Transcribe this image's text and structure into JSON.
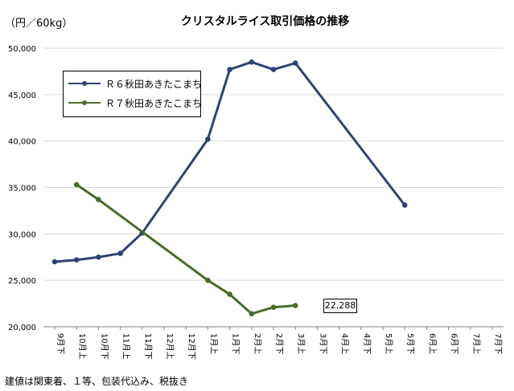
{
  "unit_label": "（円／60kg）",
  "footnote": "建値は関東着、１等、包装代込み、税抜き",
  "chart_data": {
    "type": "line",
    "title": "クリスタルライス取引価格の推移",
    "xlabel": "",
    "ylabel": "",
    "categories": [
      "9月下",
      "10月上",
      "10月下",
      "11月上",
      "11月下",
      "12月上",
      "12月下",
      "1月上",
      "1月下",
      "2月上",
      "2月下",
      "3月上",
      "3月下",
      "4月上",
      "4月下",
      "5月上",
      "5月下",
      "6月上",
      "6月下",
      "7月上",
      "7月下"
    ],
    "ylim": [
      20000,
      50000
    ],
    "yticks": [
      20000,
      25000,
      30000,
      35000,
      40000,
      45000,
      50000
    ],
    "ytick_labels": [
      "20,000",
      "25,000",
      "30,000",
      "35,000",
      "40,000",
      "45,000",
      "50,000"
    ],
    "grid": true,
    "legend_position": "top-left",
    "series": [
      {
        "name": "Ｒ６秋田あきたこまち",
        "color": "#2e4374",
        "values": [
          27000,
          27200,
          27500,
          27900,
          30100,
          null,
          null,
          40200,
          47700,
          48500,
          47700,
          48400,
          null,
          null,
          null,
          null,
          33100,
          null,
          null,
          null,
          null
        ]
      },
      {
        "name": "Ｒ７秋田あきたこまち",
        "color": "#4a6b28",
        "values": [
          null,
          35300,
          33700,
          null,
          null,
          null,
          null,
          25000,
          23500,
          21400,
          22100,
          22288,
          null,
          null,
          null,
          null,
          null,
          null,
          null,
          null,
          null
        ]
      }
    ],
    "annotations": [
      {
        "series": 1,
        "category": "3月下",
        "text": "22,288"
      }
    ]
  }
}
